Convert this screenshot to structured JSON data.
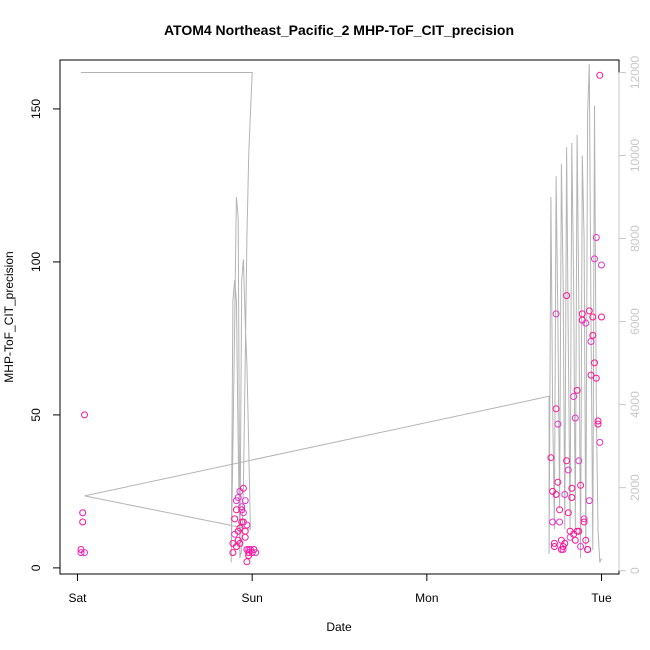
{
  "chart_data": {
    "type": "scatter",
    "title": "ATOM4 Northeast_Pacific_2 MHP-ToF_CIT_precision",
    "xlabel": "Date",
    "ylabel": "MHP-ToF_CIT_precision",
    "x_ticks": [
      {
        "label": "Sat",
        "day": 0
      },
      {
        "label": "Sun",
        "day": 1
      },
      {
        "label": "Mon",
        "day": 2
      },
      {
        "label": "Tue",
        "day": 3
      }
    ],
    "y_ticks": [
      0,
      50,
      100,
      150
    ],
    "y2_ticks": [
      0,
      2000,
      4000,
      6000,
      8000,
      10000,
      12000
    ],
    "xlim_days": [
      -0.1,
      3.1
    ],
    "ylim": [
      -2,
      166
    ],
    "y2lim": [
      -80,
      12300
    ],
    "grid": false,
    "colors": {
      "points": "#ff1493",
      "points_alt": "#e633cc",
      "line": "#b4b4b4",
      "right_axis": "#c8c8c8",
      "axis": "#000000"
    },
    "series": [
      {
        "name": "",
        "style": "points",
        "x_days": [
          0.02,
          0.02,
          0.03,
          0.03,
          0.03,
          0.04,
          0.04,
          0.89,
          0.89,
          0.9,
          0.9,
          0.91,
          0.91,
          0.91,
          0.92,
          0.92,
          0.92,
          0.93,
          0.93,
          0.93,
          0.94,
          0.94,
          0.94,
          0.95,
          0.95,
          0.95,
          0.96,
          0.96,
          0.96,
          0.97,
          0.97,
          0.97,
          0.98,
          0.98,
          0.98,
          0.99,
          0.99,
          1.0,
          1.01,
          1.02,
          2.71,
          2.72,
          2.72,
          2.73,
          2.73,
          2.74,
          2.74,
          2.74,
          2.75,
          2.75,
          2.76,
          2.76,
          2.77,
          2.77,
          2.78,
          2.78,
          2.79,
          2.79,
          2.8,
          2.8,
          2.81,
          2.81,
          2.82,
          2.82,
          2.83,
          2.83,
          2.84,
          2.84,
          2.85,
          2.85,
          2.86,
          2.86,
          2.87,
          2.87,
          2.88,
          2.88,
          2.89,
          2.89,
          2.9,
          2.9,
          2.91,
          2.91,
          2.92,
          2.92,
          2.93,
          2.93,
          2.94,
          2.94,
          2.95,
          2.95,
          2.96,
          2.96,
          2.97,
          2.97,
          2.98,
          2.98,
          2.99,
          2.99,
          3.0,
          3.0
        ],
        "y": [
          5,
          6,
          18,
          18,
          15,
          50,
          5,
          5,
          8,
          11,
          16,
          19,
          22,
          7,
          12,
          23,
          9,
          13,
          25,
          8,
          15,
          20,
          19,
          26,
          18,
          15,
          10,
          22,
          12,
          6,
          14,
          2,
          5,
          6,
          4,
          6,
          6,
          5,
          6,
          5,
          36,
          25,
          15,
          8,
          7,
          83,
          52,
          24,
          47,
          28,
          19,
          15,
          9,
          6,
          6,
          7,
          8,
          24,
          89,
          35,
          32,
          18,
          12,
          10,
          26,
          23,
          56,
          11,
          9,
          49,
          58,
          12,
          35,
          12,
          27,
          7,
          81,
          83,
          16,
          15,
          9,
          80,
          6,
          6,
          22,
          84,
          63,
          74,
          82,
          76,
          101,
          67,
          62,
          108,
          48,
          47,
          41,
          161,
          82,
          99
        ]
      },
      {
        "name": "",
        "style": "line",
        "axis": "right",
        "x_days": [
          0.02,
          0.02,
          0.03,
          0.04,
          0.05,
          1.0,
          1.0,
          0.99,
          0.98,
          0.97,
          0.96,
          0.95,
          0.94,
          0.93,
          0.92,
          0.91,
          0.9,
          0.89,
          0.88,
          0.88,
          0.89,
          0.9,
          0.91,
          0.92,
          0.93,
          0.94,
          0.95,
          0.96,
          0.97,
          0.98,
          0.99,
          0.04,
          2.7,
          2.7,
          2.71,
          2.72,
          2.73,
          2.74,
          2.75,
          2.76,
          2.77,
          2.78,
          2.79,
          2.8,
          2.81,
          2.82,
          2.83,
          2.84,
          2.85,
          2.86,
          2.87,
          2.88,
          2.89,
          2.9,
          2.91,
          2.92,
          2.93,
          2.94,
          2.95,
          2.96,
          2.97,
          2.98,
          2.99,
          3.0
        ],
        "y": [
          12000,
          12000,
          12000,
          12000,
          12000,
          12000,
          12000,
          11000,
          10000,
          8000,
          5000,
          2000,
          500,
          300,
          8500,
          9000,
          6000,
          3000,
          200,
          200,
          6500,
          7000,
          6500,
          3000,
          400,
          7000,
          7500,
          6000,
          5000,
          3000,
          1000,
          1800,
          4200,
          400,
          9000,
          4000,
          1000,
          9500,
          6000,
          1500,
          9800,
          7000,
          1000,
          10200,
          5500,
          1000,
          10300,
          7000,
          1000,
          10500,
          6500,
          300,
          10000,
          8000,
          500,
          11000,
          12200,
          6000,
          500,
          11200,
          4000,
          1000,
          200,
          300
        ]
      }
    ]
  }
}
